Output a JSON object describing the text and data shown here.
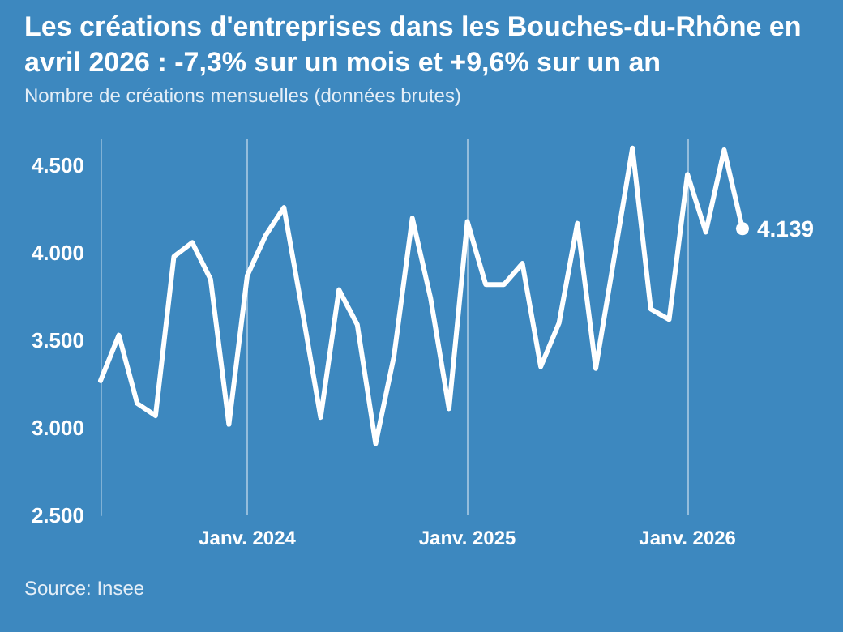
{
  "chart_data": {
    "type": "line",
    "title": "Les créations d'entreprises dans les Bouches-du-Rhône en avril 2026 : -7,3% sur un mois et +9,6% sur un an",
    "subtitle": "Nombre de créations mensuelles (données brutes)",
    "annotations": [
      "Source: Insee"
    ],
    "categories": [
      null,
      null,
      null,
      null,
      null,
      null,
      null,
      null,
      "Janv. 2024",
      null,
      null,
      null,
      null,
      null,
      null,
      null,
      null,
      null,
      null,
      null,
      "Janv. 2025",
      null,
      null,
      null,
      null,
      null,
      null,
      null,
      null,
      null,
      null,
      null,
      "Janv. 2026",
      null,
      null,
      null
    ],
    "series": [
      {
        "color": "#ffffff",
        "values": [
          3270,
          3530,
          3140,
          3070,
          3980,
          4060,
          3850,
          3020,
          3870,
          4100,
          4260,
          3670,
          3060,
          3790,
          3590,
          2910,
          3410,
          4200,
          3740,
          3110,
          4180,
          3820,
          3820,
          3940,
          3350,
          3600,
          4170,
          3340,
          3970,
          4600,
          3680,
          3620,
          4450,
          4120,
          4590,
          4139
        ],
        "value_labels": [
          null,
          null,
          null,
          null,
          null,
          null,
          null,
          null,
          null,
          null,
          null,
          null,
          null,
          null,
          null,
          null,
          null,
          null,
          null,
          null,
          null,
          null,
          null,
          null,
          null,
          null,
          null,
          null,
          null,
          null,
          null,
          null,
          null,
          null,
          null,
          "4.139"
        ]
      }
    ],
    "ylim": [
      2500,
      4650
    ],
    "yticks": [
      {
        "value": 2500,
        "label": "2.500"
      },
      {
        "value": 3000,
        "label": "3.000"
      },
      {
        "value": 3500,
        "label": "3.500"
      },
      {
        "value": 4000,
        "label": "4.000"
      },
      {
        "value": 4500,
        "label": "4.500"
      }
    ],
    "grid": "x"
  }
}
